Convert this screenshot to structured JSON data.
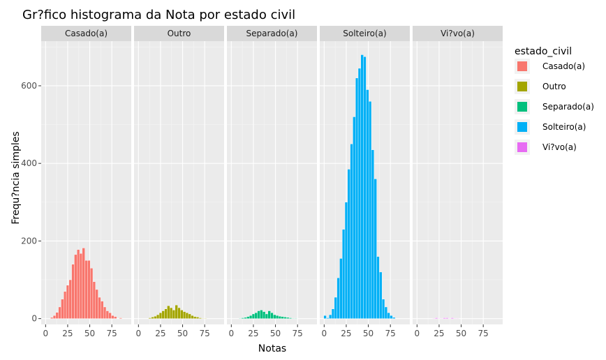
{
  "chart_data": {
    "type": "bar",
    "title": "Gr?fico histograma da Nota por estado civil",
    "xlabel": "Notas",
    "ylabel": "Frequ?ncia simples",
    "xlim": [
      -5,
      97
    ],
    "ylim": [
      -15,
      715
    ],
    "x_ticks": [
      0,
      25,
      50,
      75
    ],
    "x_tick_labels": [
      "0",
      "25",
      "50",
      "75"
    ],
    "y_ticks": [
      0,
      200,
      400,
      600
    ],
    "y_tick_labels": [
      "0",
      "200",
      "400",
      "600"
    ],
    "grid": true,
    "bin_width": 3,
    "bins": [
      1,
      4,
      7,
      10,
      13,
      16,
      19,
      22,
      25,
      28,
      31,
      34,
      37,
      40,
      43,
      46,
      49,
      52,
      55,
      58,
      61,
      64,
      67,
      70,
      73,
      76,
      79,
      82,
      85,
      88
    ],
    "legend": {
      "title": "estado_civil",
      "position": "right",
      "entries": [
        "Casado(a)",
        "Outro",
        "Separado(a)",
        "Solteiro(a)",
        "Vi?vo(a)"
      ]
    },
    "series": [
      {
        "name": "Casado(a)",
        "color": "#F8766D",
        "values": [
          0,
          0,
          3,
          8,
          16,
          30,
          50,
          70,
          86,
          100,
          140,
          165,
          178,
          168,
          182,
          150,
          150,
          130,
          95,
          75,
          55,
          45,
          30,
          20,
          15,
          8,
          5,
          0,
          2,
          0
        ]
      },
      {
        "name": "Outro",
        "color": "#A3A500",
        "values": [
          0,
          0,
          0,
          0,
          2,
          4,
          6,
          10,
          15,
          20,
          25,
          33,
          28,
          22,
          35,
          28,
          22,
          18,
          15,
          12,
          8,
          5,
          4,
          2,
          1,
          1,
          0,
          0,
          0,
          0
        ]
      },
      {
        "name": "Separado(a)",
        "color": "#00BF7D",
        "values": [
          0,
          0,
          0,
          1,
          2,
          3,
          5,
          8,
          12,
          15,
          20,
          22,
          18,
          12,
          20,
          15,
          10,
          8,
          6,
          5,
          4,
          3,
          2,
          1,
          1,
          0,
          0,
          0,
          0,
          0
        ]
      },
      {
        "name": "Solteiro(a)",
        "color": "#00B0F6",
        "values": [
          8,
          2,
          10,
          25,
          55,
          105,
          155,
          230,
          300,
          385,
          450,
          520,
          620,
          645,
          680,
          675,
          590,
          560,
          435,
          360,
          160,
          120,
          50,
          30,
          15,
          8,
          3,
          0,
          0,
          0
        ]
      },
      {
        "name": "Vi?vo(a)",
        "color": "#E76BF3",
        "values": [
          0,
          0,
          0,
          0,
          0,
          0,
          1,
          2,
          1,
          1,
          2,
          2,
          1,
          2,
          1,
          1,
          0,
          0,
          0,
          0,
          0,
          0,
          0,
          0,
          0,
          0,
          0,
          0,
          0,
          0
        ]
      }
    ]
  }
}
